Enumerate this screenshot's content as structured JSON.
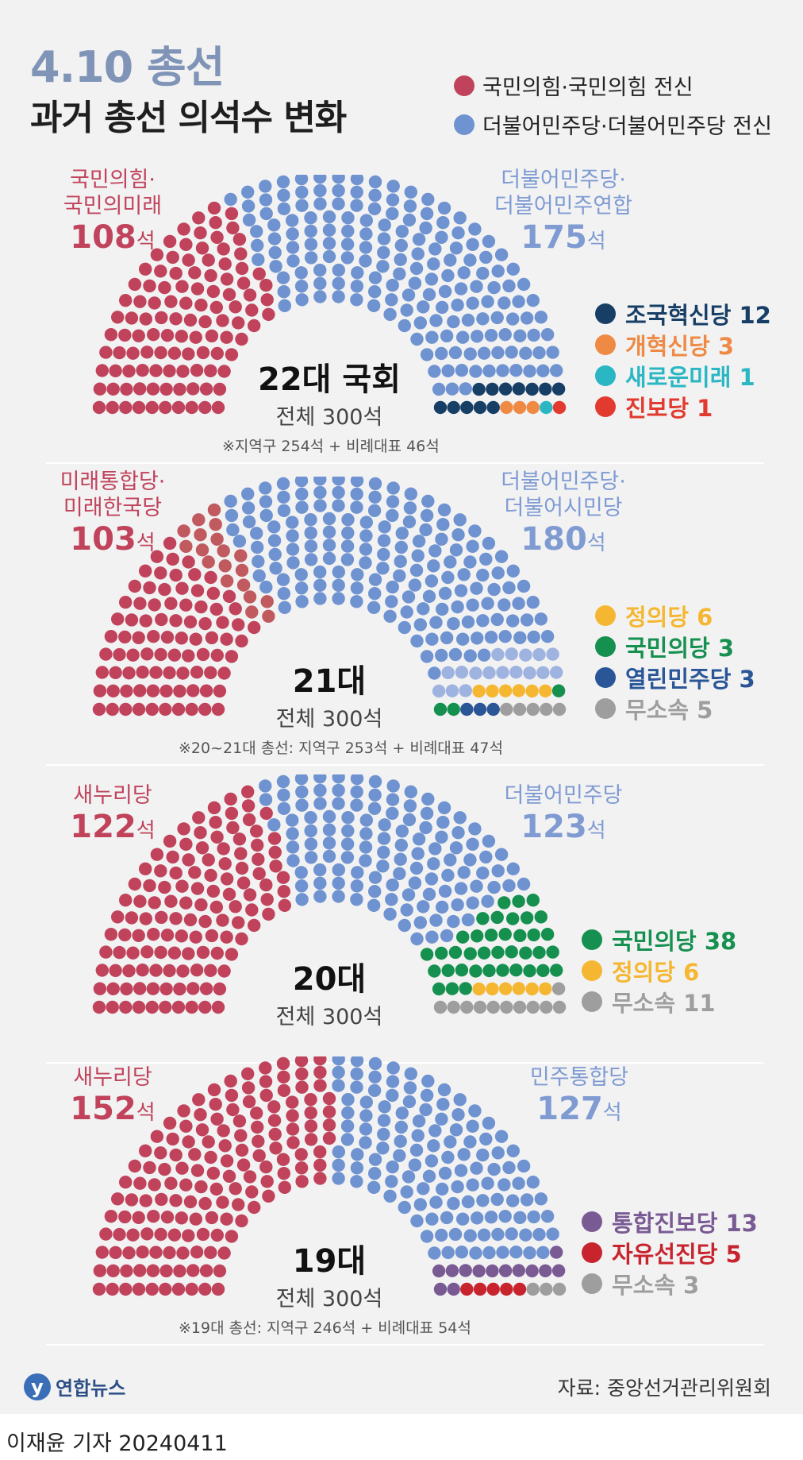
{
  "header": {
    "title": "4.10 총선",
    "subtitle": "과거 총선 의석수 변화"
  },
  "legend": [
    {
      "label": "국민의힘·국민의힘 전신",
      "color": "#c0435b"
    },
    {
      "label": "더불어민주당·더불어민주당 전신",
      "color": "#6f93d0"
    }
  ],
  "chart_data": [
    {
      "type": "parliament",
      "title": "22대 국회",
      "subtitle": "전체 300석",
      "total": 300,
      "footnote": "※지역구 254석 + 비례대표 46석",
      "left_party": {
        "name_lines": [
          "국민의힘·",
          "국민의미래"
        ],
        "seats": 108,
        "seats_label": "108",
        "color": "#c0435b"
      },
      "right_party": {
        "name_lines": [
          "더불어민주당·",
          "더불어민주연합"
        ],
        "seats": 175,
        "seats_label": "175",
        "color": "#6f93d0"
      },
      "minor": [
        {
          "name": "조국혁신당",
          "seats": 12,
          "label": "조국혁신당 12",
          "color": "#173f66"
        },
        {
          "name": "개혁신당",
          "seats": 3,
          "label": "개혁신당 3",
          "color": "#ef8a45"
        },
        {
          "name": "새로운미래",
          "seats": 1,
          "label": "새로운미래 1",
          "color": "#2ab7c3"
        },
        {
          "name": "진보당",
          "seats": 1,
          "label": "진보당 1",
          "color": "#e23a2f"
        }
      ]
    },
    {
      "type": "parliament",
      "title": "21대",
      "subtitle": "전체 300석",
      "total": 300,
      "footnote": "※20~21대 총선: 지역구 253석 + 비례대표 47석",
      "left_party": {
        "name_lines": [
          "미래통합당·",
          "미래한국당"
        ],
        "seats": 103,
        "seats_label": "103",
        "color": "#c0435b",
        "sub_color": "#c05a5f",
        "sub_seats": 19
      },
      "right_party": {
        "name_lines": [
          "더불어민주당·",
          "더불어시민당"
        ],
        "seats": 180,
        "seats_label": "180",
        "color": "#6f93d0",
        "sub_color": "#9fb3e0",
        "sub_seats": 17
      },
      "minor": [
        {
          "name": "정의당",
          "seats": 6,
          "label": "정의당 6",
          "color": "#f5b731"
        },
        {
          "name": "국민의당",
          "seats": 3,
          "label": "국민의당 3",
          "color": "#15904f"
        },
        {
          "name": "열린민주당",
          "seats": 3,
          "label": "열린민주당 3",
          "color": "#2a5697"
        },
        {
          "name": "무소속",
          "seats": 5,
          "label": "무소속 5",
          "color": "#9e9e9e"
        }
      ]
    },
    {
      "type": "parliament",
      "title": "20대",
      "subtitle": "전체 300석",
      "total": 300,
      "footnote": "",
      "left_party": {
        "name_lines": [
          "새누리당"
        ],
        "seats": 122,
        "seats_label": "122",
        "color": "#c0435b"
      },
      "right_party": {
        "name_lines": [
          "더불어민주당"
        ],
        "seats": 123,
        "seats_label": "123",
        "color": "#6f93d0"
      },
      "minor": [
        {
          "name": "국민의당",
          "seats": 38,
          "label": "국민의당 38",
          "color": "#15904f"
        },
        {
          "name": "정의당",
          "seats": 6,
          "label": "정의당 6",
          "color": "#f5b731"
        },
        {
          "name": "무소속",
          "seats": 11,
          "label": "무소속 11",
          "color": "#9e9e9e"
        }
      ]
    },
    {
      "type": "parliament",
      "title": "19대",
      "subtitle": "전체 300석",
      "total": 300,
      "footnote": "※19대 총선: 지역구 246석 + 비례대표 54석",
      "left_party": {
        "name_lines": [
          "새누리당"
        ],
        "seats": 152,
        "seats_label": "152",
        "color": "#c0435b"
      },
      "right_party": {
        "name_lines": [
          "민주통합당"
        ],
        "seats": 127,
        "seats_label": "127",
        "color": "#6f93d0"
      },
      "minor": [
        {
          "name": "통합진보당",
          "seats": 13,
          "label": "통합진보당 13",
          "color": "#7a5a93"
        },
        {
          "name": "자유선진당",
          "seats": 5,
          "label": "자유선진당 5",
          "color": "#c8242e"
        },
        {
          "name": "무소속",
          "seats": 3,
          "label": "무소속 3",
          "color": "#9e9e9e"
        }
      ]
    }
  ],
  "seat_unit": "석",
  "footer": {
    "logo_text": "연합뉴스",
    "source": "자료: 중앙선거관리위원회",
    "byline": "이재윤 기자  20240411"
  }
}
